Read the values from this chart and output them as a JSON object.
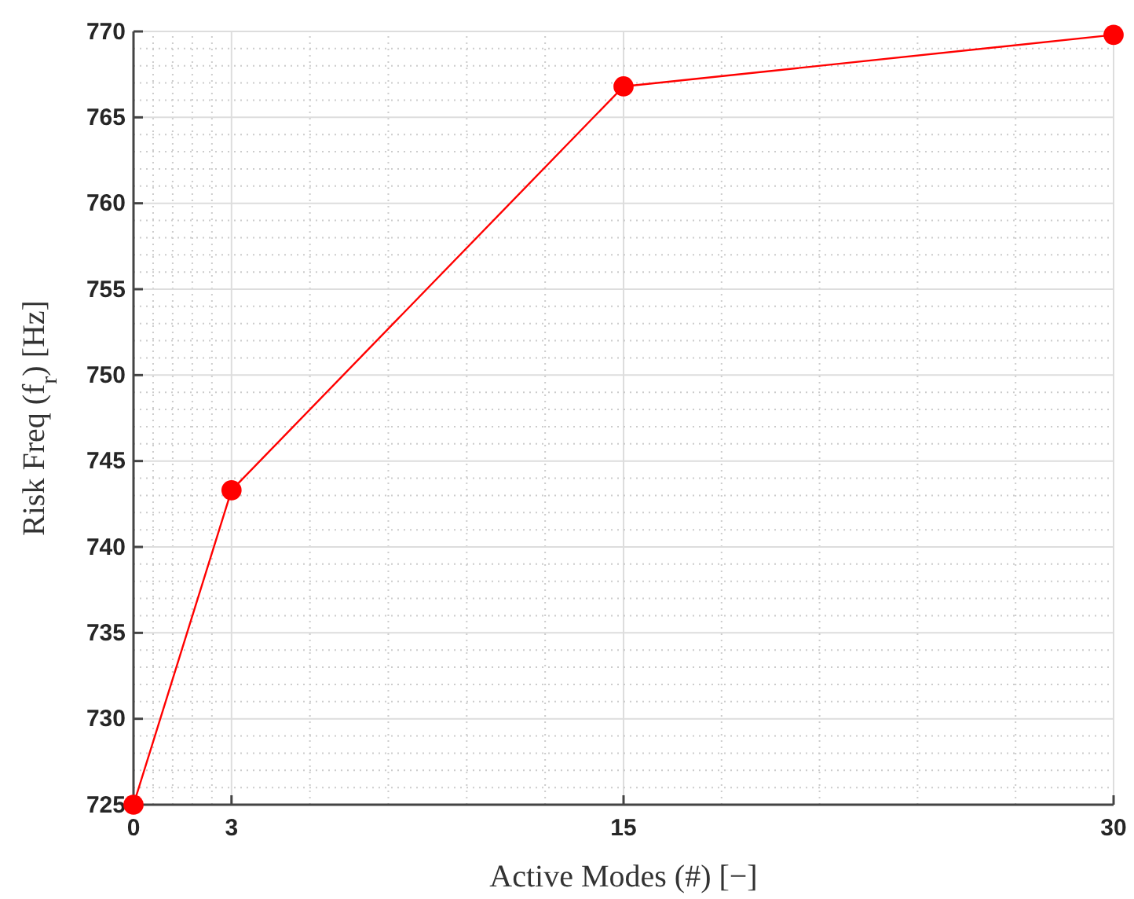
{
  "chart_data": {
    "type": "line",
    "xlabel": "Active Modes (#) [−]",
    "ylabel": "Risk Freq (f$_{r}$) [Hz]",
    "x": [
      0,
      3,
      15,
      30
    ],
    "series": [
      {
        "color": "#ff0000",
        "values": [
          725,
          743.3,
          766.8,
          769.8
        ]
      }
    ],
    "xlim": [
      0,
      30
    ],
    "xticks": [
      0,
      3,
      15,
      30
    ],
    "ylim": [
      725,
      770
    ],
    "yticks": [
      725,
      730,
      735,
      740,
      745,
      750,
      755,
      760,
      765,
      770
    ],
    "grid": true,
    "marker": "circle",
    "line_style": "solid"
  }
}
